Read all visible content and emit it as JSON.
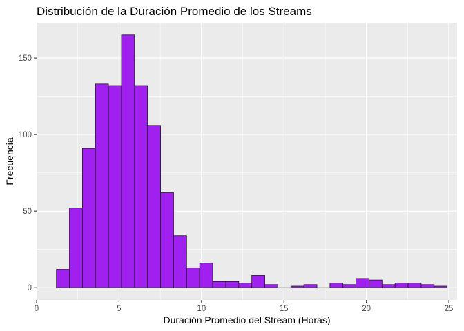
{
  "chart_data": {
    "type": "bar",
    "title": "Distribución de la Duración Promedio de los Streams",
    "xlabel": "Duración Promedio del Stream (Horas)",
    "ylabel": "Frecuencia",
    "xlim": [
      0,
      25.5
    ],
    "ylim": [
      -8,
      173
    ],
    "x_ticks": [
      0,
      5,
      10,
      15,
      20,
      25
    ],
    "y_ticks": [
      0,
      50,
      100,
      150
    ],
    "bin_width": 0.79,
    "bin_start": 1.2,
    "values": [
      12,
      52,
      91,
      133,
      132,
      165,
      132,
      106,
      62,
      34,
      13,
      16,
      4,
      4,
      3,
      8,
      2,
      0,
      1,
      2,
      0,
      3,
      2,
      6,
      5,
      2,
      3,
      3,
      2,
      1
    ],
    "grid": true,
    "legend": "none",
    "colors": {
      "panel": "#ebebeb",
      "grid_major": "#ffffff",
      "bar_fill": "#a020f0",
      "bar_stroke": "#1a1a1a"
    }
  }
}
